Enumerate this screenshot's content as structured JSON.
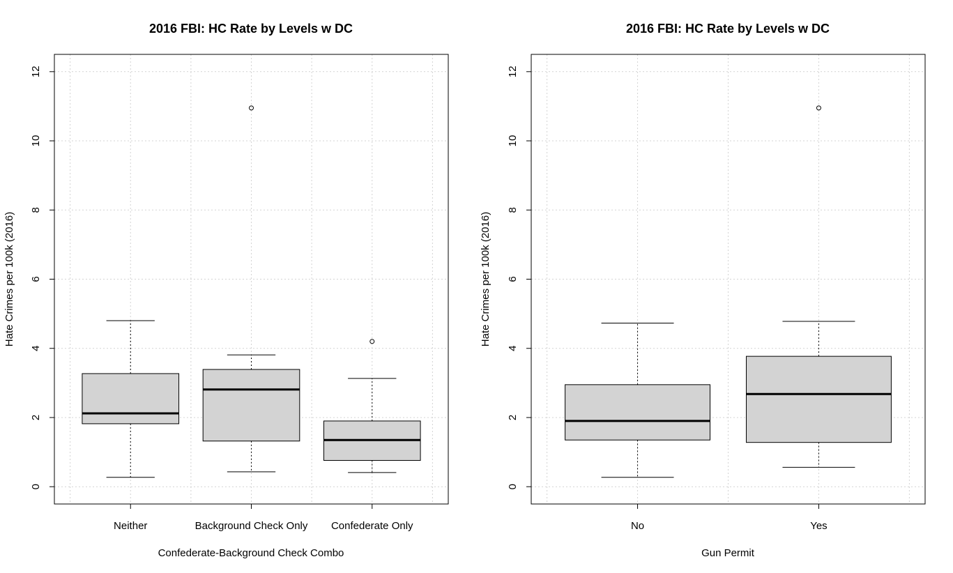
{
  "chart_data": [
    {
      "type": "boxplot",
      "title": "2016 FBI: HC Rate by Levels w DC",
      "xlabel": "Confederate-Background Check Combo",
      "ylabel": "Hate Crimes per 100k (2016)",
      "ylim": [
        -0.5,
        12.5
      ],
      "yticks": [
        0,
        2,
        4,
        6,
        8,
        10,
        12
      ],
      "grid": true,
      "categories": [
        "Neither",
        "Background Check Only",
        "Confederate Only"
      ],
      "boxes": [
        {
          "whisker_low": 0.27,
          "q1": 1.82,
          "median": 2.12,
          "q3": 3.27,
          "whisker_high": 4.8,
          "outliers": []
        },
        {
          "whisker_low": 0.43,
          "q1": 1.32,
          "median": 2.81,
          "q3": 3.39,
          "whisker_high": 3.81,
          "outliers": [
            10.95
          ]
        },
        {
          "whisker_low": 0.41,
          "q1": 0.76,
          "median": 1.35,
          "q3": 1.9,
          "whisker_high": 3.13,
          "outliers": [
            4.2
          ]
        }
      ]
    },
    {
      "type": "boxplot",
      "title": "2016 FBI: HC Rate by Levels w DC",
      "xlabel": "Gun Permit",
      "ylabel": "Hate Crimes per 100k (2016)",
      "ylim": [
        -0.5,
        12.5
      ],
      "yticks": [
        0,
        2,
        4,
        6,
        8,
        10,
        12
      ],
      "grid": true,
      "categories": [
        "No",
        "Yes"
      ],
      "boxes": [
        {
          "whisker_low": 0.27,
          "q1": 1.35,
          "median": 1.9,
          "q3": 2.95,
          "whisker_high": 4.73,
          "outliers": []
        },
        {
          "whisker_low": 0.56,
          "q1": 1.28,
          "median": 2.68,
          "q3": 3.77,
          "whisker_high": 4.78,
          "outliers": [
            10.95
          ]
        }
      ]
    }
  ]
}
